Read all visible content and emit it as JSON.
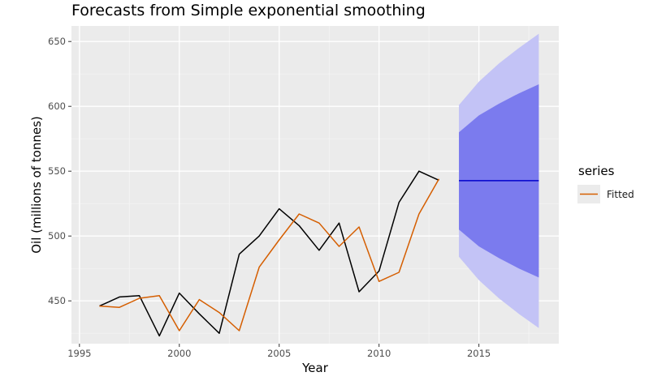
{
  "chart_data": {
    "type": "line",
    "title": "Forecasts from Simple exponential smoothing",
    "xlabel": "Year",
    "ylabel": "Oil (millions of tonnes)",
    "xlim": [
      1994.6,
      2019.0
    ],
    "ylim": [
      417,
      662
    ],
    "x_ticks": [
      1995,
      2000,
      2005,
      2010,
      2015
    ],
    "y_ticks": [
      450,
      500,
      550,
      600,
      650
    ],
    "grid": true,
    "legend_position": "right",
    "legend_title": "series",
    "observed": {
      "x": [
        1996,
        1997,
        1998,
        1999,
        2000,
        2001,
        2002,
        2003,
        2004,
        2005,
        2006,
        2007,
        2008,
        2009,
        2010,
        2011,
        2012,
        2013
      ],
      "y": [
        446,
        453,
        454,
        423,
        456,
        440,
        425,
        486,
        500,
        521,
        508,
        489,
        510,
        457,
        473,
        526,
        550,
        543
      ],
      "color": "#000000"
    },
    "series": [
      {
        "name": "Fitted",
        "color": "#D55E00",
        "x": [
          1996,
          1997,
          1998,
          1999,
          2000,
          2001,
          2002,
          2003,
          2004,
          2005,
          2006,
          2007,
          2008,
          2009,
          2010,
          2011,
          2012,
          2013
        ],
        "y": [
          446,
          445,
          452,
          454,
          427,
          451,
          441,
          427,
          476,
          497,
          517,
          510,
          492,
          507,
          465,
          472,
          517,
          544
        ]
      }
    ],
    "forecast": {
      "x": [
        2014,
        2015,
        2016,
        2017,
        2018
      ],
      "mean": [
        542.7,
        542.7,
        542.7,
        542.7,
        542.7
      ],
      "lo80": [
        505,
        492,
        483,
        475,
        468
      ],
      "hi80": [
        580,
        593,
        602,
        610,
        617
      ],
      "lo95": [
        484,
        466,
        452,
        440,
        429
      ],
      "hi95": [
        601,
        619,
        633,
        645,
        656
      ],
      "mean_color": "#0000CC",
      "band80_color": "#7B7BEE",
      "band95_color": "#C3C3F6"
    }
  }
}
